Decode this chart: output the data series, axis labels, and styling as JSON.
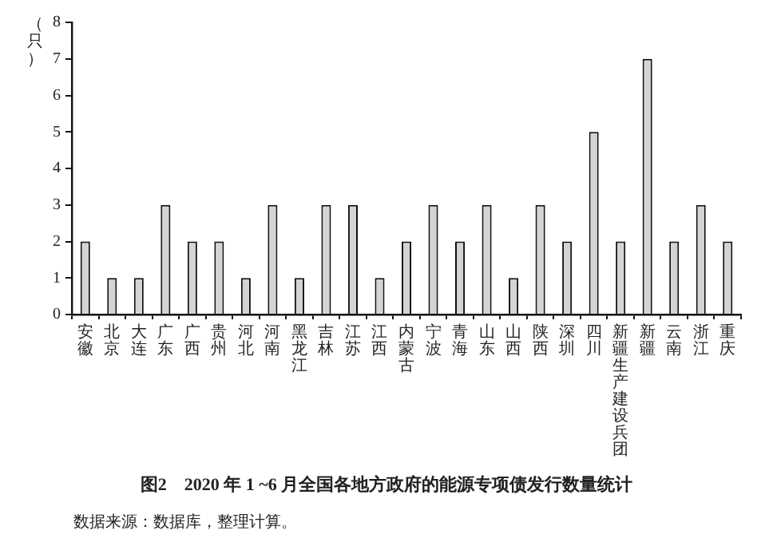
{
  "chart_data": {
    "type": "bar",
    "title": "图2　2020 年 1 ~6 月全国各地方政府的能源专项债发行数量统计",
    "ylabel": "（只）",
    "categories": [
      "安徽",
      "北京",
      "大连",
      "广东",
      "广西",
      "贵州",
      "河北",
      "河南",
      "黑龙江",
      "吉林",
      "江苏",
      "江西",
      "内蒙古",
      "宁波",
      "青海",
      "山东",
      "山西",
      "陕西",
      "深圳",
      "四川",
      "新疆生产建设兵团",
      "新疆",
      "云南",
      "浙江",
      "重庆"
    ],
    "values": [
      2,
      1,
      1,
      3,
      2,
      2,
      1,
      3,
      1,
      3,
      3,
      1,
      2,
      3,
      2,
      3,
      1,
      3,
      2,
      5,
      2,
      7,
      2,
      3,
      2
    ],
    "color": "#d4d4d4",
    "ylim": [
      0,
      8
    ],
    "yticks": [
      0,
      1,
      2,
      3,
      4,
      5,
      6,
      7,
      8
    ],
    "grid": false,
    "legend": false,
    "annotations": [
      "数据来源：数据库，整理计算。"
    ]
  }
}
